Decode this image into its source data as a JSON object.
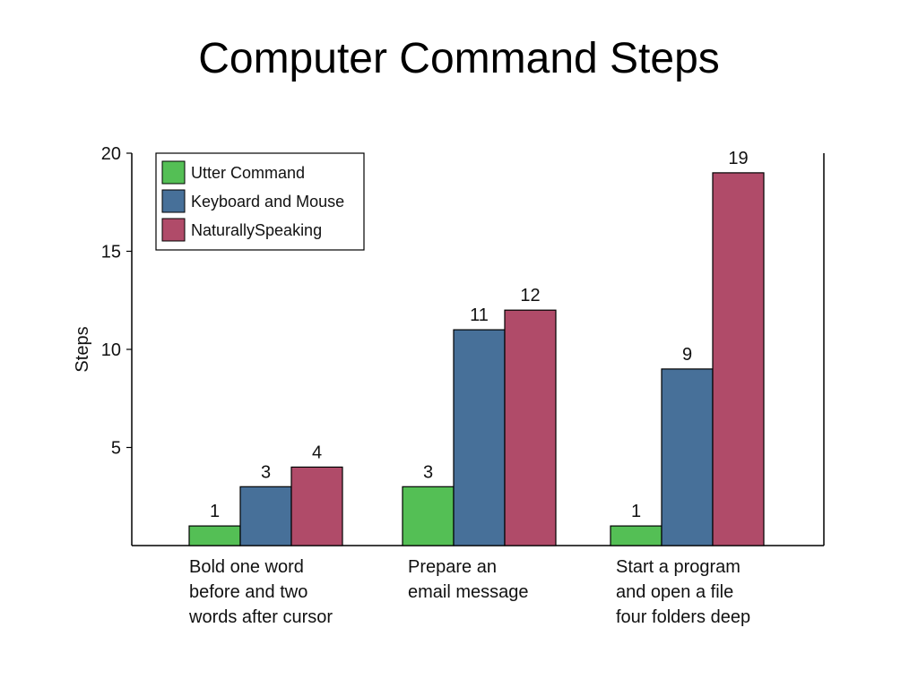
{
  "slide": {
    "title": "Computer Command Steps"
  },
  "chart_data": {
    "type": "bar",
    "title": "",
    "xlabel": "",
    "ylabel": "Steps",
    "ylim": [
      0,
      20
    ],
    "yticks": [
      5,
      10,
      15,
      20
    ],
    "categories": [
      [
        "Bold one word",
        "before and two",
        "words after cursor"
      ],
      [
        "Prepare an",
        "email message"
      ],
      [
        "Start a program",
        "and open a file",
        "four folders deep"
      ]
    ],
    "series": [
      {
        "name": "Utter Command",
        "color": "#54bf55",
        "values": [
          1,
          3,
          1
        ]
      },
      {
        "name": "Keyboard and Mouse",
        "color": "#477099",
        "values": [
          3,
          11,
          9
        ]
      },
      {
        "name": "NaturallySpeaking",
        "color": "#b04b69",
        "values": [
          4,
          12,
          19
        ]
      }
    ],
    "legend": "top-left",
    "grid": false
  }
}
